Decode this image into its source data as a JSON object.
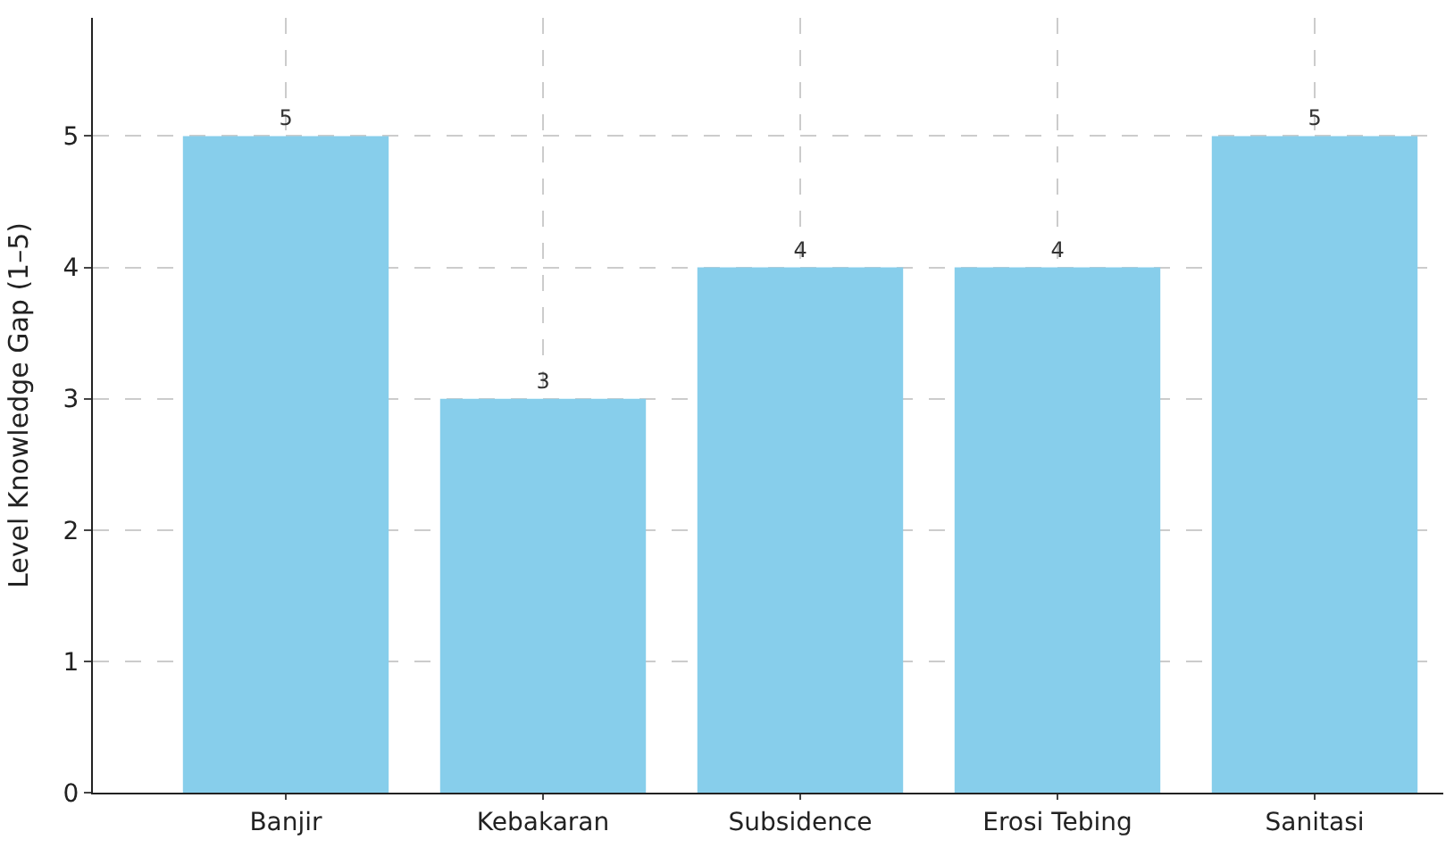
{
  "chart_data": {
    "type": "bar",
    "ylabel": "Level Knowledge Gap (1–5)",
    "categories": [
      "Banjir",
      "Kebakaran",
      "Subsidence",
      "Erosi Tebing",
      "Sanitasi"
    ],
    "values": [
      5,
      3,
      4,
      4,
      5
    ],
    "color": "#87ceeb",
    "ylim": [
      0,
      5.9
    ],
    "yticks": [
      0,
      1,
      2,
      3,
      4,
      5
    ],
    "grid": true,
    "data_labels": true
  }
}
